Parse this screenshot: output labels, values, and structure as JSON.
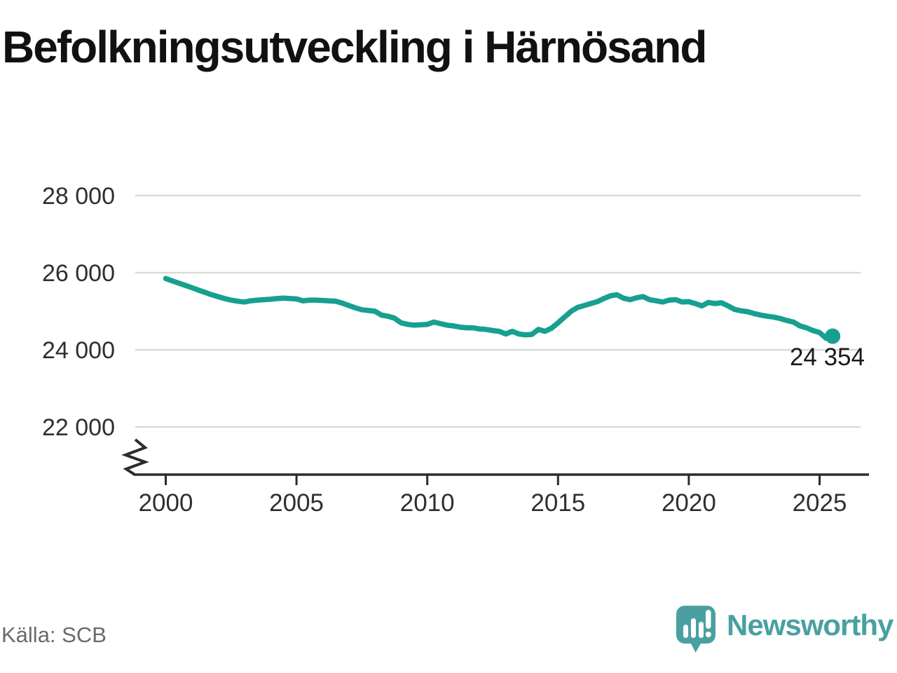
{
  "title": "Befolkningsutveckling i Härnösand",
  "source": "Källa: SCB",
  "branding": {
    "logo_text": "Newsworthy",
    "logo_icon": "bar-chart-speech-bubble-icon"
  },
  "colors": {
    "line": "#17a08f",
    "marker": "#17a08f",
    "brand": "#4AA0A1",
    "grid": "#d8d8d8",
    "axis": "#2b2b2b",
    "tick_text": "#2f2f2f",
    "end_label_text": "#1a1a1a",
    "muted_text": "#6a6a6a"
  },
  "chart_data": {
    "type": "line",
    "title": "Befolkningsutveckling i Härnösand",
    "xlabel": "",
    "ylabel": "",
    "legend": "none",
    "grid": "horizontal-gridlines",
    "y_axis_break": true,
    "ylim": [
      21600,
      28400
    ],
    "xlim": [
      1999,
      2027
    ],
    "x_start_year": 2000,
    "x_interval_years": 0.25,
    "x_tick_labels": [
      "2000",
      "2005",
      "2010",
      "2015",
      "2020",
      "2025"
    ],
    "x_tick_values": [
      2000,
      2005,
      2010,
      2015,
      2020,
      2025
    ],
    "y_ticks": [
      {
        "label": "28 000",
        "value": 28000
      },
      {
        "label": "26 000",
        "value": 26000
      },
      {
        "label": "24 000",
        "value": 24000
      },
      {
        "label": "22 000",
        "value": 22000
      }
    ],
    "end_label": "24 354",
    "end_value": 24354,
    "series": [
      {
        "name": "Befolkning Härnösand (kvartalsvis)",
        "values": [
          25850,
          25790,
          25730,
          25670,
          25610,
          25550,
          25490,
          25430,
          25380,
          25330,
          25290,
          25260,
          25240,
          25270,
          25290,
          25300,
          25310,
          25330,
          25340,
          25330,
          25320,
          25270,
          25290,
          25290,
          25280,
          25270,
          25260,
          25210,
          25150,
          25090,
          25040,
          25020,
          25000,
          24900,
          24870,
          24820,
          24700,
          24660,
          24640,
          24650,
          24660,
          24720,
          24680,
          24640,
          24620,
          24590,
          24570,
          24570,
          24540,
          24530,
          24500,
          24480,
          24410,
          24480,
          24410,
          24390,
          24400,
          24530,
          24480,
          24560,
          24700,
          24850,
          25000,
          25100,
          25150,
          25200,
          25250,
          25330,
          25400,
          25430,
          25340,
          25300,
          25350,
          25380,
          25300,
          25270,
          25240,
          25290,
          25300,
          25240,
          25250,
          25200,
          25140,
          25230,
          25200,
          25220,
          25140,
          25050,
          25010,
          24990,
          24940,
          24900,
          24870,
          24850,
          24810,
          24760,
          24720,
          24620,
          24570,
          24500,
          24450,
          24300,
          24354
        ]
      }
    ]
  }
}
